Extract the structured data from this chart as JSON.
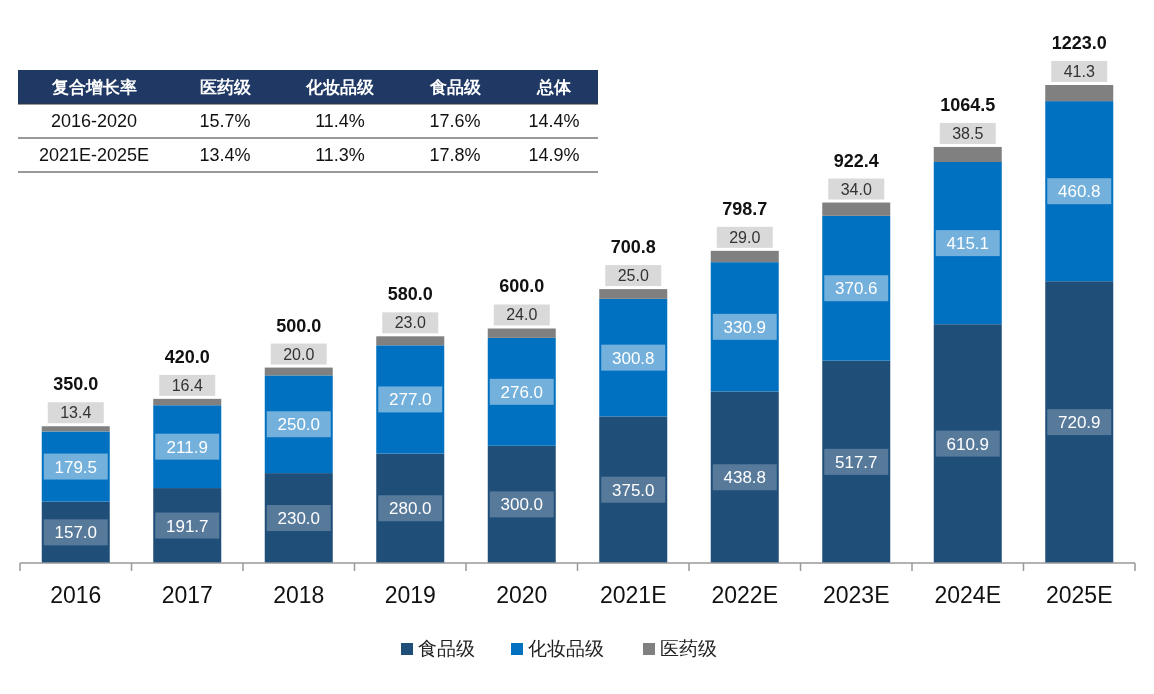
{
  "chart_data": {
    "type": "bar",
    "stacked": true,
    "legend": "bottom",
    "categories": [
      "2016",
      "2017",
      "2018",
      "2019",
      "2020",
      "2021E",
      "2022E",
      "2023E",
      "2024E",
      "2025E"
    ],
    "series": [
      {
        "name": "食品级",
        "color": "#1f4e79",
        "values": [
          157,
          191.7,
          230,
          280,
          300,
          375,
          438.8,
          517.7,
          610.9,
          720.9
        ],
        "value_labels": [
          "157.0",
          "191.7",
          "230.0",
          "280.0",
          "300.0",
          "375.0",
          "438.8",
          "517.7",
          "610.9",
          "720.9"
        ]
      },
      {
        "name": "化妆品级",
        "color": "#0070c0",
        "values": [
          179.5,
          211.9,
          250,
          277,
          276,
          300.8,
          330.9,
          370.6,
          415.1,
          460.8
        ],
        "value_labels": [
          "179.5",
          "211.9",
          "250.0",
          "277.0",
          "276.0",
          "300.8",
          "330.9",
          "370.6",
          "415.1",
          "460.8"
        ]
      },
      {
        "name": "医药级",
        "color": "#808080",
        "values": [
          13.4,
          16.4,
          20,
          23,
          24,
          25,
          29,
          34,
          38.5,
          41.3
        ],
        "value_labels": [
          "13.4",
          "16.4",
          "20.0",
          "23.0",
          "24.0",
          "25.0",
          "29.0",
          "34.0",
          "38.5",
          "41.3"
        ]
      }
    ],
    "totals": [
      "350.0",
      "420.0",
      "500.0",
      "580.0",
      "600.0",
      "700.8",
      "798.7",
      "922.4",
      "1064.5",
      "1223.0"
    ],
    "annotations": [
      "复合增长率",
      "医药级",
      "化妆品级",
      "食品级",
      "总体",
      "2016-2020",
      "15.7%",
      "11.4%",
      "17.6%",
      "14.4%",
      "2021E-2025E",
      "13.4%",
      "11.3%",
      "17.8%",
      "14.9%"
    ]
  }
}
